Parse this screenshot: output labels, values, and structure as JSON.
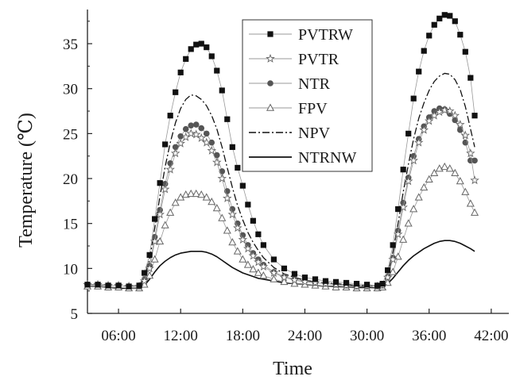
{
  "chart_data": {
    "type": "line",
    "xlabel": "Time",
    "ylabel": "Temperature (℃)",
    "x_ticks": [
      "06:00",
      "12:00",
      "18:00",
      "24:00",
      "30:00",
      "36:00",
      "42:00"
    ],
    "x_tick_hours": [
      6,
      12,
      18,
      24,
      30,
      36,
      42
    ],
    "y_ticks": [
      "5",
      "10",
      "15",
      "20",
      "25",
      "30",
      "35"
    ],
    "xlim_hours": [
      3.0,
      43.7
    ],
    "ylim": [
      5,
      38.8
    ],
    "legend_position": "top-right",
    "grid": false,
    "x": [
      3.0,
      4.0,
      5.0,
      6.0,
      7.0,
      8.0,
      8.5,
      9.0,
      9.5,
      10.0,
      10.5,
      11.0,
      11.5,
      12.0,
      12.5,
      13.0,
      13.5,
      14.0,
      14.5,
      15.0,
      15.5,
      16.0,
      16.5,
      17.0,
      17.5,
      18.0,
      18.5,
      19.0,
      19.5,
      20.0,
      21.0,
      22.0,
      23.0,
      24.0,
      25.0,
      26.0,
      27.0,
      28.0,
      29.0,
      30.0,
      31.0,
      31.5,
      32.0,
      32.5,
      33.0,
      33.5,
      34.0,
      34.5,
      35.0,
      35.5,
      36.0,
      36.5,
      37.0,
      37.5,
      38.0,
      38.5,
      39.0,
      39.5,
      40.0,
      40.4
    ],
    "series": [
      {
        "name": "PVTRW",
        "style": "square",
        "values": [
          8.2,
          8.2,
          8.1,
          8.1,
          8.0,
          8.1,
          9.5,
          11.5,
          15.5,
          19.5,
          23.8,
          27.0,
          29.6,
          31.8,
          33.3,
          34.4,
          34.9,
          35.0,
          34.6,
          33.6,
          32.0,
          29.8,
          26.6,
          23.5,
          21.2,
          19.2,
          17.1,
          15.3,
          13.8,
          12.6,
          11.0,
          10.0,
          9.4,
          9.0,
          8.8,
          8.6,
          8.5,
          8.4,
          8.3,
          8.2,
          8.1,
          8.3,
          9.8,
          12.6,
          16.6,
          21.0,
          25.0,
          28.9,
          31.9,
          34.2,
          35.9,
          37.1,
          37.8,
          38.2,
          38.1,
          37.5,
          36.0,
          34.1,
          31.2,
          27.0
        ]
      },
      {
        "name": "PVTR",
        "style": "star",
        "values": [
          8.2,
          8.2,
          8.1,
          8.1,
          8.0,
          8.0,
          8.6,
          10.0,
          13.0,
          16.0,
          18.8,
          21.0,
          22.8,
          23.9,
          24.6,
          25.0,
          24.9,
          24.5,
          24.0,
          23.1,
          21.8,
          20.0,
          17.8,
          16.0,
          14.5,
          13.2,
          12.2,
          11.4,
          10.7,
          10.2,
          9.5,
          9.0,
          8.7,
          8.5,
          8.4,
          8.3,
          8.2,
          8.1,
          8.0,
          8.0,
          8.0,
          8.1,
          9.0,
          11.0,
          13.8,
          16.8,
          19.7,
          22.0,
          24.0,
          25.4,
          26.4,
          27.0,
          27.4,
          27.6,
          27.5,
          27.0,
          26.0,
          24.8,
          22.8,
          19.8
        ]
      },
      {
        "name": "NTR",
        "style": "circle",
        "values": [
          8.2,
          8.2,
          8.1,
          8.1,
          8.0,
          8.0,
          8.8,
          10.3,
          13.5,
          16.5,
          19.4,
          21.7,
          23.5,
          24.7,
          25.5,
          25.9,
          26.0,
          25.6,
          25.0,
          24.0,
          22.6,
          20.8,
          18.6,
          16.6,
          15.0,
          13.7,
          12.6,
          11.7,
          11.0,
          10.4,
          9.6,
          9.1,
          8.8,
          8.6,
          8.4,
          8.3,
          8.2,
          8.1,
          8.0,
          8.0,
          8.0,
          8.1,
          9.1,
          11.2,
          14.2,
          17.3,
          20.1,
          22.5,
          24.4,
          25.8,
          26.8,
          27.5,
          27.8,
          27.7,
          27.2,
          26.5,
          25.4,
          24.0,
          22.0,
          22.0
        ]
      },
      {
        "name": "FPV",
        "style": "triangle",
        "values": [
          8.0,
          8.0,
          7.9,
          7.9,
          7.8,
          7.8,
          8.2,
          9.2,
          11.0,
          13.0,
          14.8,
          16.2,
          17.3,
          17.9,
          18.2,
          18.3,
          18.3,
          18.2,
          17.9,
          17.4,
          16.7,
          15.6,
          14.2,
          12.9,
          11.9,
          11.0,
          10.4,
          9.9,
          9.5,
          9.2,
          8.8,
          8.5,
          8.3,
          8.2,
          8.1,
          8.0,
          7.9,
          7.9,
          7.8,
          7.8,
          7.8,
          7.9,
          8.4,
          9.6,
          11.3,
          13.2,
          15.0,
          16.6,
          17.9,
          19.0,
          19.9,
          20.6,
          21.1,
          21.3,
          21.1,
          20.6,
          19.7,
          18.5,
          17.2,
          16.2
        ]
      },
      {
        "name": "NPV",
        "style": "dashdot",
        "values": [
          8.2,
          8.2,
          8.1,
          8.1,
          8.0,
          8.1,
          9.0,
          11.0,
          14.5,
          18.0,
          21.3,
          24.0,
          26.2,
          27.8,
          28.8,
          29.3,
          29.2,
          28.8,
          28.1,
          27.0,
          25.5,
          23.5,
          21.2,
          19.0,
          17.0,
          15.4,
          14.0,
          12.9,
          12.0,
          11.2,
          10.1,
          9.4,
          9.0,
          8.7,
          8.5,
          8.4,
          8.3,
          8.2,
          8.1,
          8.1,
          8.0,
          8.2,
          9.3,
          11.8,
          15.0,
          18.5,
          21.6,
          24.4,
          26.7,
          28.4,
          29.8,
          30.8,
          31.4,
          31.7,
          31.6,
          31.0,
          29.9,
          28.0,
          25.5,
          23.5
        ]
      },
      {
        "name": "NTRNW",
        "style": "solid",
        "values": [
          8.0,
          8.0,
          7.9,
          7.8,
          7.8,
          7.8,
          8.1,
          8.8,
          9.6,
          10.3,
          10.8,
          11.2,
          11.5,
          11.7,
          11.8,
          11.9,
          11.9,
          11.9,
          11.8,
          11.6,
          11.3,
          10.9,
          10.5,
          10.1,
          9.8,
          9.5,
          9.3,
          9.1,
          8.9,
          8.8,
          8.6,
          8.4,
          8.3,
          8.2,
          8.1,
          8.0,
          8.0,
          7.9,
          7.9,
          7.9,
          7.8,
          7.9,
          8.3,
          8.9,
          9.6,
          10.3,
          10.9,
          11.4,
          11.8,
          12.2,
          12.5,
          12.8,
          13.0,
          13.1,
          13.1,
          13.0,
          12.8,
          12.5,
          12.2,
          11.9
        ]
      }
    ]
  }
}
